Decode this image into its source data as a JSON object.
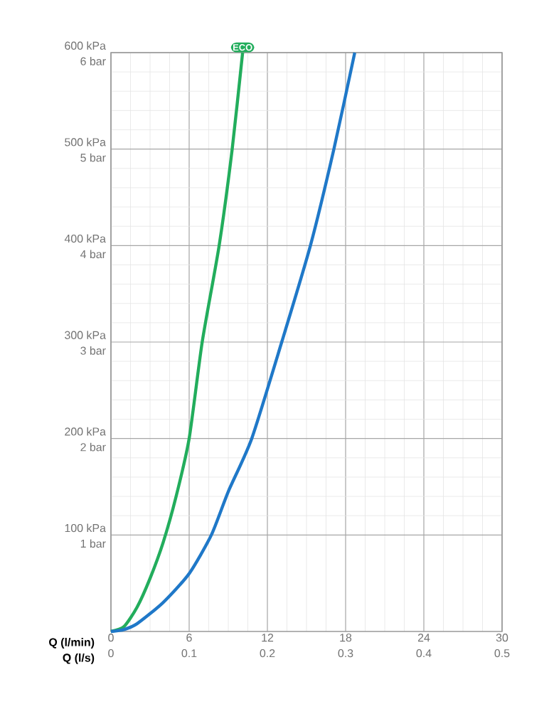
{
  "chart_data": {
    "type": "line",
    "xlabel": "Q (l/min)",
    "x2label": "Q (l/s)",
    "xlim": [
      0,
      30
    ],
    "xticks": [
      0,
      6,
      12,
      18,
      24,
      30
    ],
    "x2lim": [
      0,
      0.5
    ],
    "x2ticks": [
      0,
      0.1,
      0.2,
      0.3,
      0.4,
      0.5
    ],
    "ylim": [
      0,
      600
    ],
    "yticks": [
      {
        "value": 100,
        "label": "100 kPa"
      },
      {
        "value": 200,
        "label": "200 kPa"
      },
      {
        "value": 300,
        "label": "300 kPa"
      },
      {
        "value": 400,
        "label": "400 kPa"
      },
      {
        "value": 500,
        "label": "500 kPa"
      },
      {
        "value": 600,
        "label": "600 kPa"
      }
    ],
    "y2lim": [
      0,
      6
    ],
    "y2ticks": [
      {
        "value": 1,
        "label": "1 bar"
      },
      {
        "value": 2,
        "label": "2 bar"
      },
      {
        "value": 3,
        "label": "3 bar"
      },
      {
        "value": 4,
        "label": "4 bar"
      },
      {
        "value": 5,
        "label": "5 bar"
      },
      {
        "value": 6,
        "label": "6 bar"
      }
    ],
    "grid": true,
    "line_style": "solid",
    "marker": "none",
    "series": [
      {
        "name": "ECO",
        "color": "#22ad5c",
        "x": [
          0,
          1,
          2,
          3,
          4,
          5,
          6,
          7,
          8.3,
          9.3,
          10.1
        ],
        "values": [
          0,
          5,
          25,
          55,
          92,
          140,
          200,
          300,
          400,
          500,
          600
        ]
      },
      {
        "color": "#1f78c8",
        "x": [
          0,
          1,
          2,
          4,
          6,
          7.7,
          9,
          10.8,
          13.1,
          15.3,
          17.1,
          18.7
        ],
        "values": [
          0,
          2,
          8,
          30,
          60,
          100,
          145,
          200,
          300,
          400,
          500,
          600
        ]
      }
    ]
  }
}
